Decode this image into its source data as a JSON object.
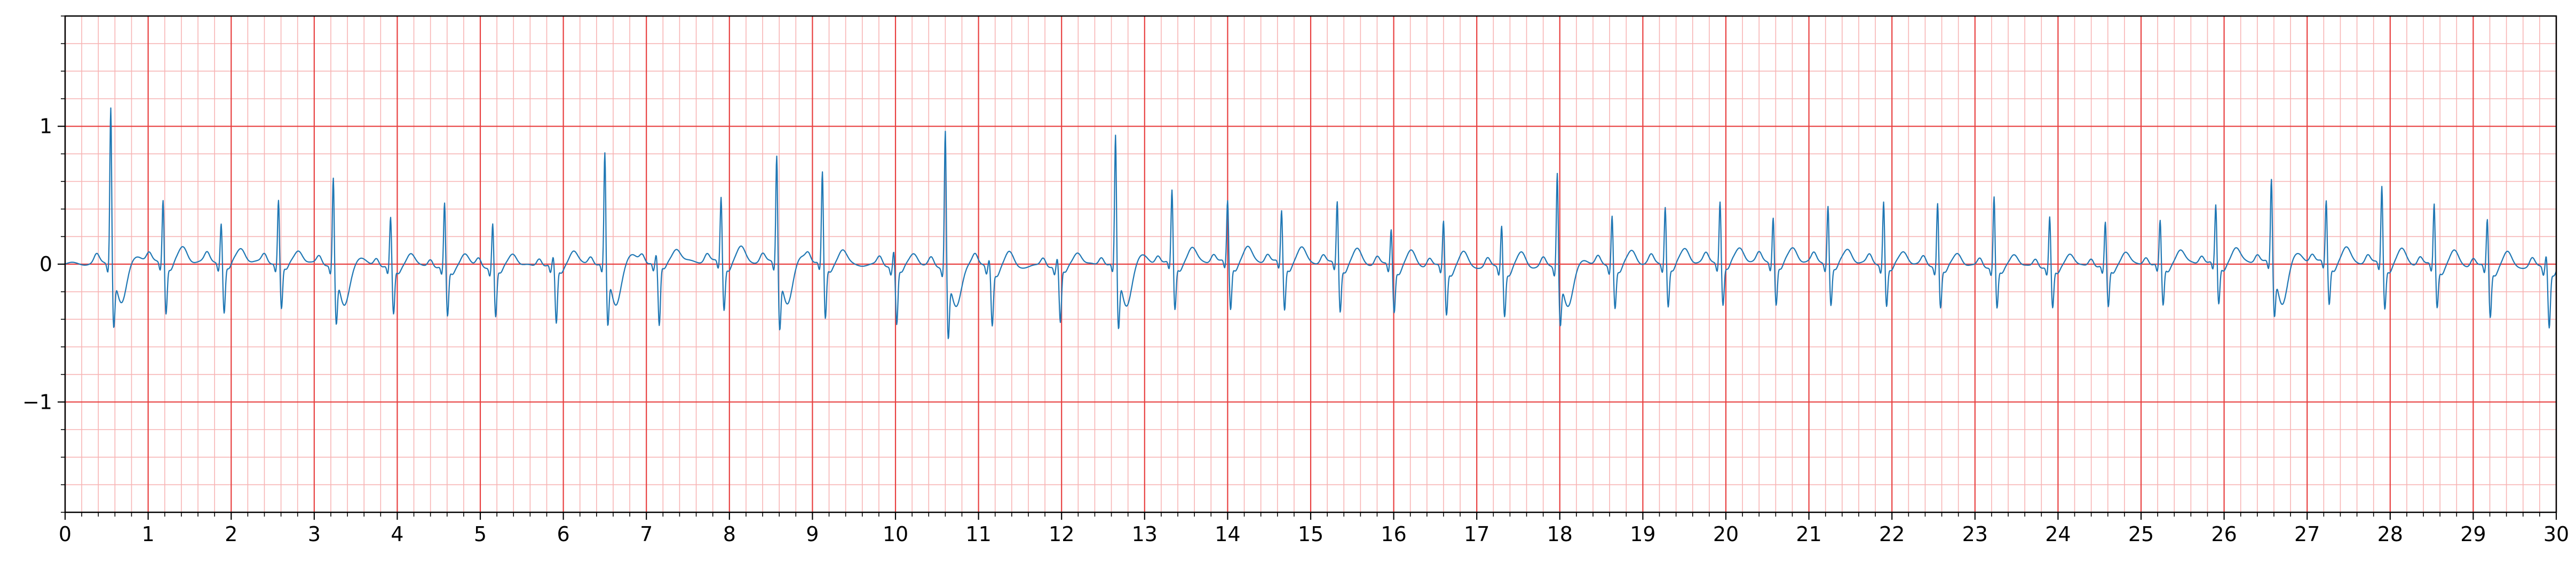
{
  "chart_data": {
    "type": "line",
    "title": "",
    "xlabel": "",
    "ylabel": "",
    "xlim": [
      0,
      30
    ],
    "ylim": [
      -1.8,
      1.8
    ],
    "grid": {
      "on": true,
      "major_x_step": 1,
      "major_y_step": 1,
      "minor_x_step": 0.2,
      "minor_y_step": 0.2,
      "major_color": "#e84040",
      "minor_color": "#f7b4b4"
    },
    "x_ticks": [
      "0",
      "1",
      "2",
      "3",
      "4",
      "5",
      "6",
      "7",
      "8",
      "9",
      "10",
      "11",
      "12",
      "13",
      "14",
      "15",
      "16",
      "17",
      "18",
      "19",
      "20",
      "21",
      "22",
      "23",
      "24",
      "25",
      "26",
      "27",
      "28",
      "29",
      "30"
    ],
    "y_ticks": [
      {
        "value": 1,
        "label": "1"
      },
      {
        "value": 0,
        "label": "0"
      },
      {
        "value": -1,
        "label": "−1"
      }
    ],
    "series": [
      {
        "color": "#1f77b4",
        "beats": [
          {
            "t": 0.55,
            "r": 1.18,
            "s": -0.38,
            "pvc": true
          },
          {
            "t": 1.18,
            "r": 0.47,
            "s": -0.36
          },
          {
            "t": 1.88,
            "r": 0.3,
            "s": -0.36
          },
          {
            "t": 2.57,
            "r": 0.47,
            "s": -0.33
          },
          {
            "t": 3.23,
            "r": 0.67,
            "s": -0.36,
            "pvc": true
          },
          {
            "t": 3.92,
            "r": 0.36,
            "s": -0.35
          },
          {
            "t": 4.57,
            "r": 0.47,
            "s": -0.36
          },
          {
            "t": 5.15,
            "r": 0.33,
            "s": -0.36
          },
          {
            "t": 5.88,
            "r": 0.06,
            "s": -0.42
          },
          {
            "t": 6.5,
            "r": 0.84,
            "s": -0.38,
            "pvc": true
          },
          {
            "t": 7.12,
            "r": 0.06,
            "s": -0.46
          },
          {
            "t": 7.9,
            "r": 0.48,
            "s": -0.34
          },
          {
            "t": 8.57,
            "r": 0.82,
            "s": -0.4,
            "pvc": true
          },
          {
            "t": 9.12,
            "r": 0.67,
            "s": -0.4
          },
          {
            "t": 9.98,
            "r": 0.12,
            "s": -0.42
          },
          {
            "t": 10.6,
            "r": 1.04,
            "s": -0.44,
            "pvc": true
          },
          {
            "t": 11.13,
            "r": 0.06,
            "s": -0.41
          },
          {
            "t": 11.95,
            "r": 0.06,
            "s": -0.41
          },
          {
            "t": 12.65,
            "r": 0.97,
            "s": -0.4,
            "pvc": true
          },
          {
            "t": 13.33,
            "r": 0.53,
            "s": -0.34
          },
          {
            "t": 14.0,
            "r": 0.45,
            "s": -0.34
          },
          {
            "t": 14.65,
            "r": 0.38,
            "s": -0.34
          },
          {
            "t": 15.32,
            "r": 0.46,
            "s": -0.34
          },
          {
            "t": 15.97,
            "r": 0.27,
            "s": -0.33
          },
          {
            "t": 16.6,
            "r": 0.34,
            "s": -0.34
          },
          {
            "t": 17.3,
            "r": 0.32,
            "s": -0.34
          },
          {
            "t": 17.97,
            "r": 0.73,
            "s": -0.34,
            "pvc": true
          },
          {
            "t": 18.63,
            "r": 0.38,
            "s": -0.3
          },
          {
            "t": 19.27,
            "r": 0.43,
            "s": -0.3
          },
          {
            "t": 19.93,
            "r": 0.46,
            "s": -0.3
          },
          {
            "t": 20.57,
            "r": 0.34,
            "s": -0.3
          },
          {
            "t": 21.23,
            "r": 0.43,
            "s": -0.3
          },
          {
            "t": 21.9,
            "r": 0.47,
            "s": -0.3
          },
          {
            "t": 22.55,
            "r": 0.47,
            "s": -0.3
          },
          {
            "t": 23.23,
            "r": 0.52,
            "s": -0.3
          },
          {
            "t": 23.9,
            "r": 0.37,
            "s": -0.3
          },
          {
            "t": 24.57,
            "r": 0.32,
            "s": -0.3
          },
          {
            "t": 25.23,
            "r": 0.32,
            "s": -0.3
          },
          {
            "t": 25.9,
            "r": 0.42,
            "s": -0.3
          },
          {
            "t": 26.57,
            "r": 0.63,
            "s": -0.32,
            "pvc": true
          },
          {
            "t": 27.23,
            "r": 0.45,
            "s": -0.3
          },
          {
            "t": 27.9,
            "r": 0.57,
            "s": -0.32
          },
          {
            "t": 28.53,
            "r": 0.45,
            "s": -0.3
          },
          {
            "t": 29.17,
            "r": 0.35,
            "s": -0.36
          },
          {
            "t": 29.88,
            "r": 0.1,
            "s": -0.42
          }
        ]
      }
    ]
  }
}
